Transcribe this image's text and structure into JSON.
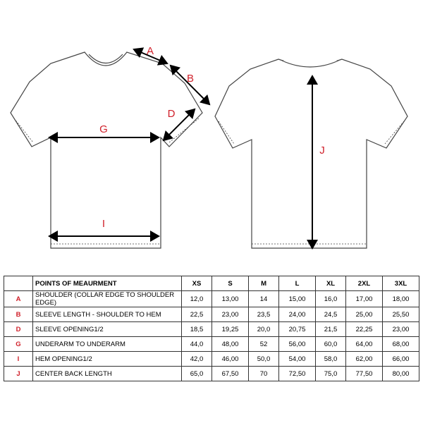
{
  "diagram": {
    "labels": {
      "a": "A",
      "b": "B",
      "d": "D",
      "g": "G",
      "i": "I",
      "j": "J"
    }
  },
  "table": {
    "header": [
      "",
      "POINTS OF MEAURMENT",
      "XS",
      "S",
      "M",
      "L",
      "XL",
      "2XL",
      "3XL"
    ],
    "rows": [
      [
        "A",
        "SHOULDER (COLLAR EDGE TO SHOULDER EDGE)",
        "12,0",
        "13,00",
        "14",
        "15,00",
        "16,0",
        "17,00",
        "18,00"
      ],
      [
        "B",
        "SLEEVE LENGTH - SHOULDER TO HEM",
        "22,5",
        "23,00",
        "23,5",
        "24,00",
        "24,5",
        "25,00",
        "25,50"
      ],
      [
        "D",
        "SLEEVE OPENING1/2",
        "18,5",
        "19,25",
        "20,0",
        "20,75",
        "21,5",
        "22,25",
        "23,00"
      ],
      [
        "G",
        "UNDERARM TO UNDERARM",
        "44,0",
        "48,00",
        "52",
        "56,00",
        "60,0",
        "64,00",
        "68,00"
      ],
      [
        "I",
        "HEM OPENING1/2",
        "42,0",
        "46,00",
        "50,0",
        "54,00",
        "58,0",
        "62,00",
        "66,00"
      ],
      [
        "J",
        "CENTER BACK LENGTH",
        "65,0",
        "67,50",
        "70",
        "72,50",
        "75,0",
        "77,50",
        "80,00"
      ]
    ]
  }
}
